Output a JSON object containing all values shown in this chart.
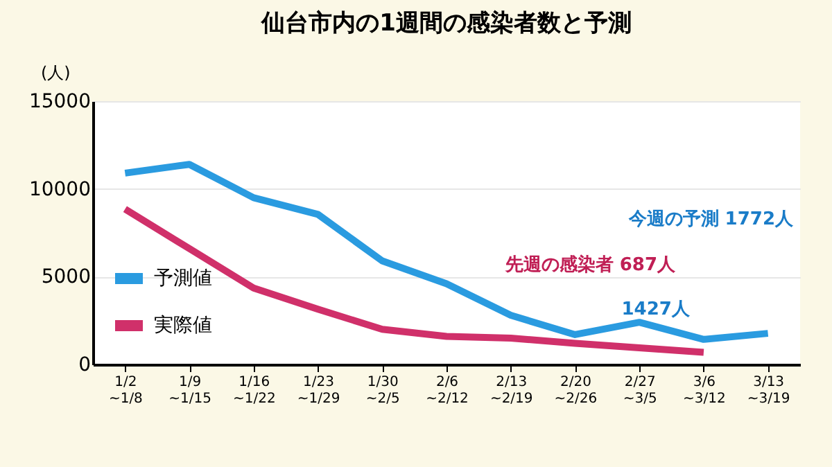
{
  "chart_data": {
    "type": "line",
    "title": "仙台市内の1週間の感染者数と予測",
    "ylabel": "(人)",
    "categories": [
      "1/2\n~1/8",
      "1/9\n~1/15",
      "1/16\n~1/22",
      "1/23\n~1/29",
      "1/30\n~2/5",
      "2/6\n~2/12",
      "2/13\n~2/19",
      "2/20\n~2/26",
      "2/27\n~3/5",
      "3/6\n~3/12",
      "3/13\n~3/19"
    ],
    "series": [
      {
        "name": "予測値",
        "color": "#2a9be0",
        "values": [
          10900,
          11400,
          9500,
          8550,
          5900,
          4600,
          2800,
          1700,
          2400,
          1427,
          1772
        ]
      },
      {
        "name": "実際値",
        "color": "#d0306a",
        "values": [
          8850,
          6600,
          4350,
          3150,
          2000,
          1600,
          1500,
          1200,
          950,
          687,
          null
        ]
      }
    ],
    "ylim": [
      0,
      15000
    ],
    "yticks": [
      0,
      5000,
      10000,
      15000
    ],
    "grid": "y",
    "legend": "bottom left",
    "annotations": [
      "今週の予測 1772人",
      "先週の感染者 687人",
      {
        "text": "1427人",
        "x": "3/6\n~3/12",
        "y": 1427
      }
    ]
  }
}
